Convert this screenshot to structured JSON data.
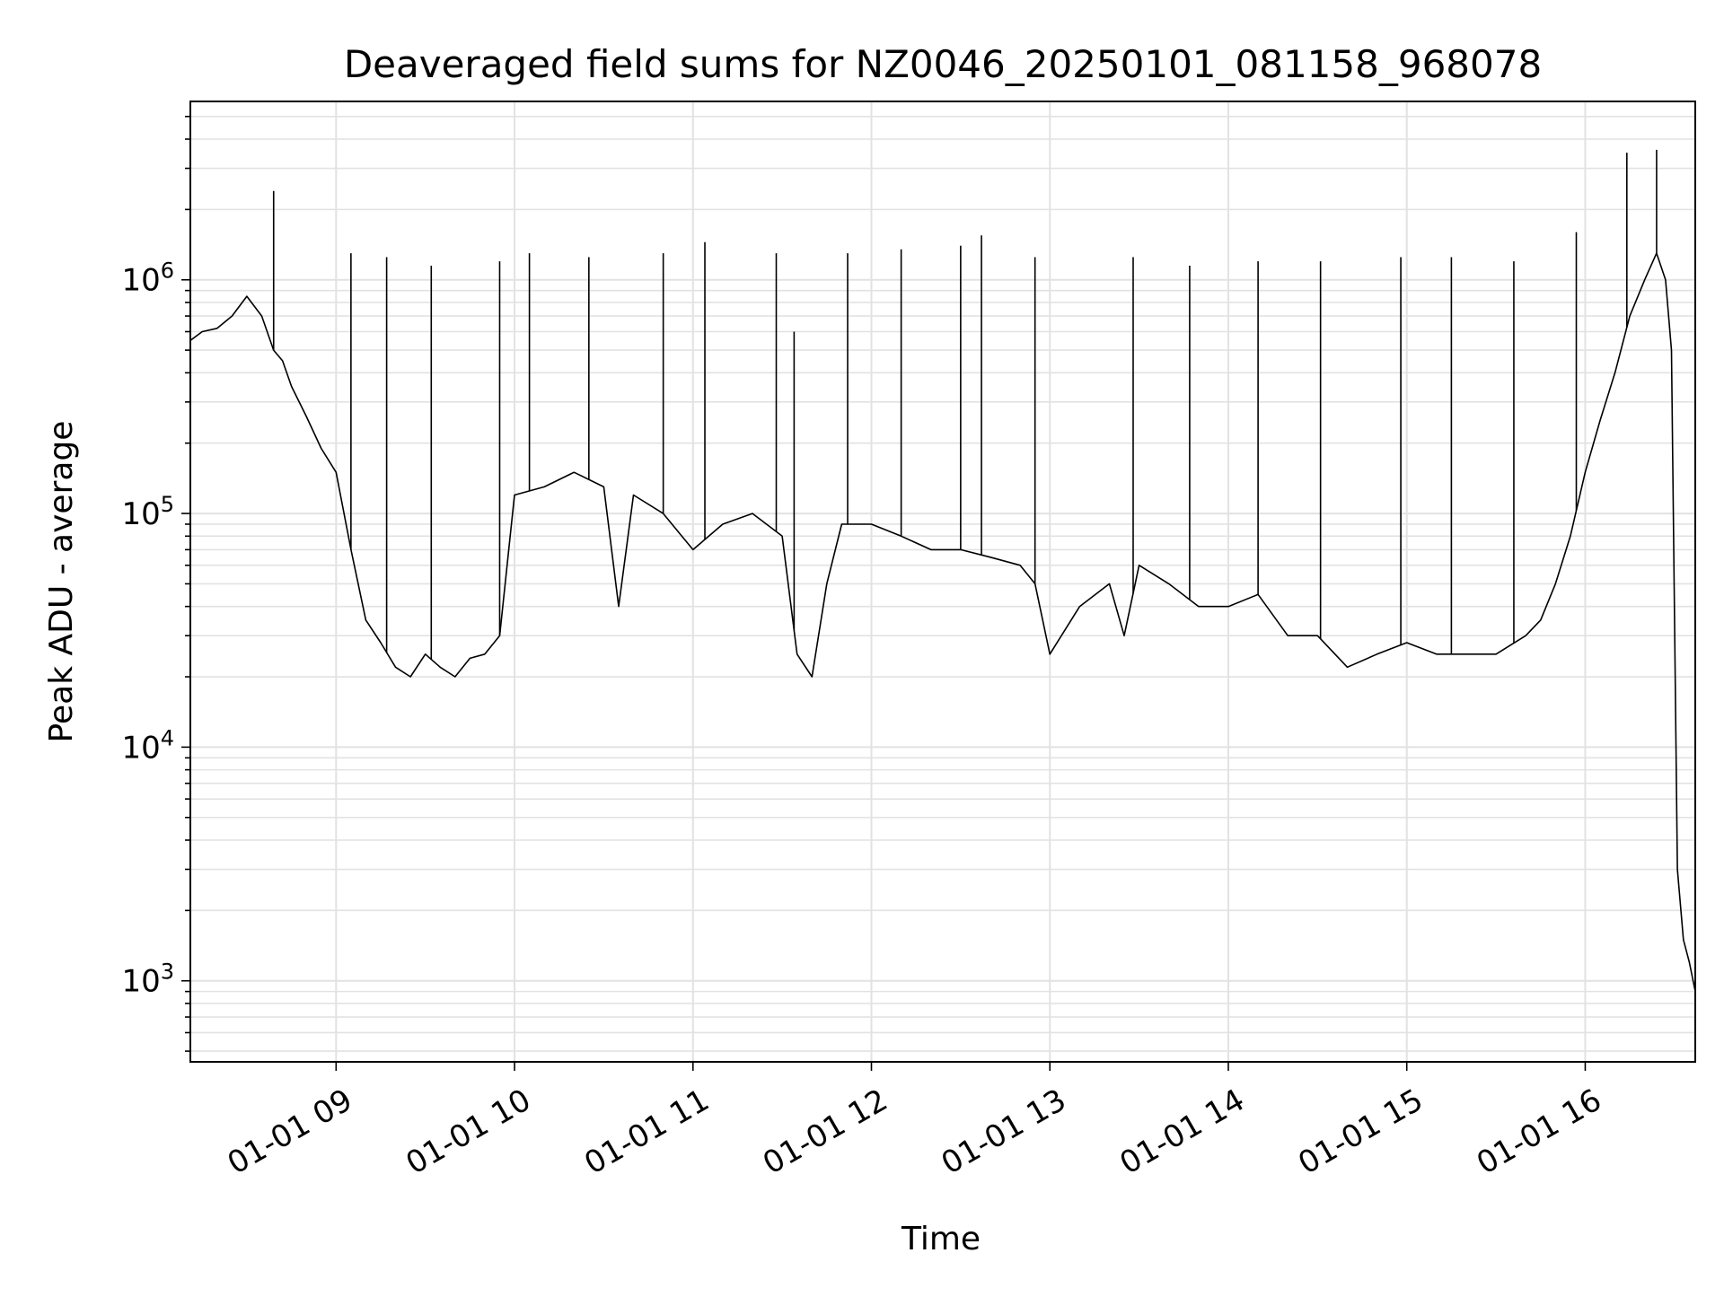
{
  "chart_data": {
    "type": "line",
    "title": "Deaveraged field sums for NZ0046_20250101_081158_968078",
    "xlabel": "Time",
    "ylabel": "Peak ADU - average",
    "yscale": "log",
    "xlim": [
      "2025-01-01 08:11",
      "2025-01-01 16:37"
    ],
    "ylim": [
      450,
      5800000
    ],
    "grid": true,
    "x_ticks": [
      {
        "value": "2025-01-01 09:00",
        "label": "01-01 09"
      },
      {
        "value": "2025-01-01 10:00",
        "label": "01-01 10"
      },
      {
        "value": "2025-01-01 11:00",
        "label": "01-01 11"
      },
      {
        "value": "2025-01-01 12:00",
        "label": "01-01 12"
      },
      {
        "value": "2025-01-01 13:00",
        "label": "01-01 13"
      },
      {
        "value": "2025-01-01 14:00",
        "label": "01-01 14"
      },
      {
        "value": "2025-01-01 15:00",
        "label": "01-01 15"
      },
      {
        "value": "2025-01-01 16:00",
        "label": "01-01 16"
      }
    ],
    "y_ticks": [
      {
        "value": 1000,
        "base": "10",
        "exp": "3"
      },
      {
        "value": 10000,
        "base": "10",
        "exp": "4"
      },
      {
        "value": 100000,
        "base": "10",
        "exp": "5"
      },
      {
        "value": 1000000,
        "base": "10",
        "exp": "6"
      }
    ],
    "series": [
      {
        "color": "#000000",
        "x": [
          "2025-01-01 08:11",
          "2025-01-01 08:15",
          "2025-01-01 08:20",
          "2025-01-01 08:25",
          "2025-01-01 08:30",
          "2025-01-01 08:35",
          "2025-01-01 08:39",
          "2025-01-01 08:42",
          "2025-01-01 08:45",
          "2025-01-01 08:50",
          "2025-01-01 08:55",
          "2025-01-01 09:00",
          "2025-01-01 09:05",
          "2025-01-01 09:10",
          "2025-01-01 09:15",
          "2025-01-01 09:20",
          "2025-01-01 09:25",
          "2025-01-01 09:30",
          "2025-01-01 09:35",
          "2025-01-01 09:40",
          "2025-01-01 09:45",
          "2025-01-01 09:50",
          "2025-01-01 09:55",
          "2025-01-01 10:00",
          "2025-01-01 10:10",
          "2025-01-01 10:20",
          "2025-01-01 10:30",
          "2025-01-01 10:35",
          "2025-01-01 10:40",
          "2025-01-01 10:50",
          "2025-01-01 11:00",
          "2025-01-01 11:10",
          "2025-01-01 11:20",
          "2025-01-01 11:30",
          "2025-01-01 11:35",
          "2025-01-01 11:40",
          "2025-01-01 11:45",
          "2025-01-01 11:50",
          "2025-01-01 12:00",
          "2025-01-01 12:10",
          "2025-01-01 12:20",
          "2025-01-01 12:30",
          "2025-01-01 12:40",
          "2025-01-01 12:50",
          "2025-01-01 12:55",
          "2025-01-01 13:00",
          "2025-01-01 13:10",
          "2025-01-01 13:20",
          "2025-01-01 13:25",
          "2025-01-01 13:30",
          "2025-01-01 13:40",
          "2025-01-01 13:50",
          "2025-01-01 14:00",
          "2025-01-01 14:10",
          "2025-01-01 14:20",
          "2025-01-01 14:30",
          "2025-01-01 14:40",
          "2025-01-01 14:50",
          "2025-01-01 15:00",
          "2025-01-01 15:10",
          "2025-01-01 15:20",
          "2025-01-01 15:30",
          "2025-01-01 15:40",
          "2025-01-01 15:45",
          "2025-01-01 15:50",
          "2025-01-01 15:55",
          "2025-01-01 16:00",
          "2025-01-01 16:05",
          "2025-01-01 16:10",
          "2025-01-01 16:15",
          "2025-01-01 16:20",
          "2025-01-01 16:24",
          "2025-01-01 16:27",
          "2025-01-01 16:29",
          "2025-01-01 16:31",
          "2025-01-01 16:33",
          "2025-01-01 16:35",
          "2025-01-01 16:37"
        ],
        "y": [
          550000,
          600000,
          620000,
          700000,
          850000,
          700000,
          500000,
          450000,
          350000,
          260000,
          190000,
          150000,
          70000,
          35000,
          28000,
          22000,
          20000,
          25000,
          22000,
          20000,
          24000,
          25000,
          30000,
          120000,
          130000,
          150000,
          130000,
          40000,
          120000,
          100000,
          70000,
          90000,
          100000,
          80000,
          25000,
          20000,
          50000,
          90000,
          90000,
          80000,
          70000,
          70000,
          65000,
          60000,
          50000,
          25000,
          40000,
          50000,
          30000,
          60000,
          50000,
          40000,
          40000,
          45000,
          30000,
          30000,
          22000,
          25000,
          28000,
          25000,
          25000,
          25000,
          30000,
          35000,
          50000,
          80000,
          150000,
          250000,
          400000,
          700000,
          1000000,
          1300000,
          1000000,
          500000,
          3000,
          1500,
          1200,
          900
        ]
      }
    ],
    "spikes": {
      "x": [
        "2025-01-01 08:39",
        "2025-01-01 09:05",
        "2025-01-01 09:17",
        "2025-01-01 09:32",
        "2025-01-01 09:55",
        "2025-01-01 10:05",
        "2025-01-01 10:25",
        "2025-01-01 10:50",
        "2025-01-01 11:04",
        "2025-01-01 11:28",
        "2025-01-01 11:34",
        "2025-01-01 11:52",
        "2025-01-01 12:10",
        "2025-01-01 12:30",
        "2025-01-01 12:37",
        "2025-01-01 12:55",
        "2025-01-01 13:28",
        "2025-01-01 13:47",
        "2025-01-01 14:10",
        "2025-01-01 14:31",
        "2025-01-01 14:58",
        "2025-01-01 15:15",
        "2025-01-01 15:36",
        "2025-01-01 15:57",
        "2025-01-01 16:14",
        "2025-01-01 16:24"
      ],
      "y": [
        2400000,
        1300000,
        1250000,
        1150000,
        1200000,
        1300000,
        1250000,
        1300000,
        1450000,
        1300000,
        600000,
        1300000,
        1350000,
        1400000,
        1550000,
        1250000,
        1250000,
        1150000,
        1200000,
        1200000,
        1250000,
        1250000,
        1200000,
        1600000,
        3500000,
        3600000
      ]
    }
  }
}
